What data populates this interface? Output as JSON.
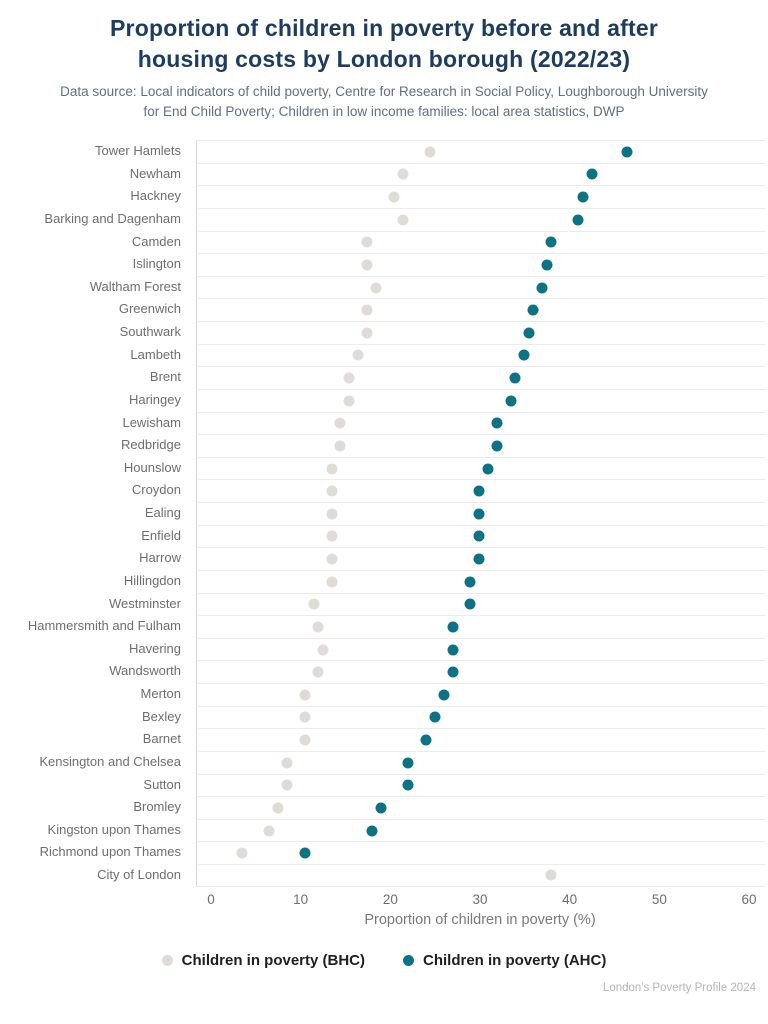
{
  "header": {
    "title": "Proportion of children in poverty before and after housing costs by London borough (2022/23)",
    "subtitle": "Data source: Local indicators of child poverty, Centre for Research in Social Policy, Loughborough University for End Child Poverty; Children in low income families: local area statistics, DWP"
  },
  "chart_data": {
    "type": "scatter",
    "variant": "horizontal-dot-plot",
    "title": "Proportion of children in poverty before and after housing costs by London borough (2022/23)",
    "xlabel": "Proportion of children in poverty (%)",
    "ylabel": "",
    "xlim": [
      0,
      60
    ],
    "xticks": [
      0,
      10,
      20,
      30,
      40,
      50,
      60
    ],
    "grid": "row-separators-only",
    "legend_position": "bottom",
    "categories": [
      "Tower Hamlets",
      "Newham",
      "Hackney",
      "Barking and Dagenham",
      "Camden",
      "Islington",
      "Waltham Forest",
      "Greenwich",
      "Southwark",
      "Lambeth",
      "Brent",
      "Haringey",
      "Lewisham",
      "Redbridge",
      "Hounslow",
      "Croydon",
      "Ealing",
      "Enfield",
      "Harrow",
      "Hillingdon",
      "Westminster",
      "Hammersmith and Fulham",
      "Havering",
      "Wandsworth",
      "Merton",
      "Bexley",
      "Barnet",
      "Kensington and Chelsea",
      "Sutton",
      "Bromley",
      "Kingston upon Thames",
      "Richmond upon Thames",
      "City of London"
    ],
    "series": [
      {
        "name": "Children in poverty (BHC)",
        "color": "#dedcd4",
        "values": [
          26,
          23,
          22,
          23,
          19,
          19,
          20,
          19,
          19,
          18,
          17,
          17,
          16,
          16,
          15,
          15,
          15,
          15,
          15,
          15,
          13,
          13.5,
          14,
          13.5,
          12,
          12,
          12,
          10,
          10,
          9,
          8,
          5,
          39.5
        ]
      },
      {
        "name": "Children in poverty (AHC)",
        "color": "#0e7287",
        "values": [
          48,
          44,
          43,
          42.5,
          39.5,
          39,
          38.5,
          37.5,
          37,
          36.5,
          35.5,
          35,
          33.5,
          33.5,
          32.5,
          31.5,
          31.5,
          31.5,
          31.5,
          30.5,
          30.5,
          28.5,
          28.5,
          28.5,
          27.5,
          26.5,
          25.5,
          23.5,
          23.5,
          20.5,
          19.5,
          12,
          null
        ]
      }
    ]
  },
  "footer": {
    "attribution": "London's Poverty Profile 2024"
  },
  "colors": {
    "title_text": "#1d3c61",
    "subtitle_text": "#5f7080",
    "axis_text": "#6e6e6e",
    "row_separator": "#ececec",
    "axis_line": "#d6d6d6",
    "bhc_dot": "#dedcd4",
    "ahc_dot": "#0e7287",
    "legend_text": "#1f1f1f",
    "footer_text": "#b5b5b5",
    "background": "#ffffff"
  }
}
